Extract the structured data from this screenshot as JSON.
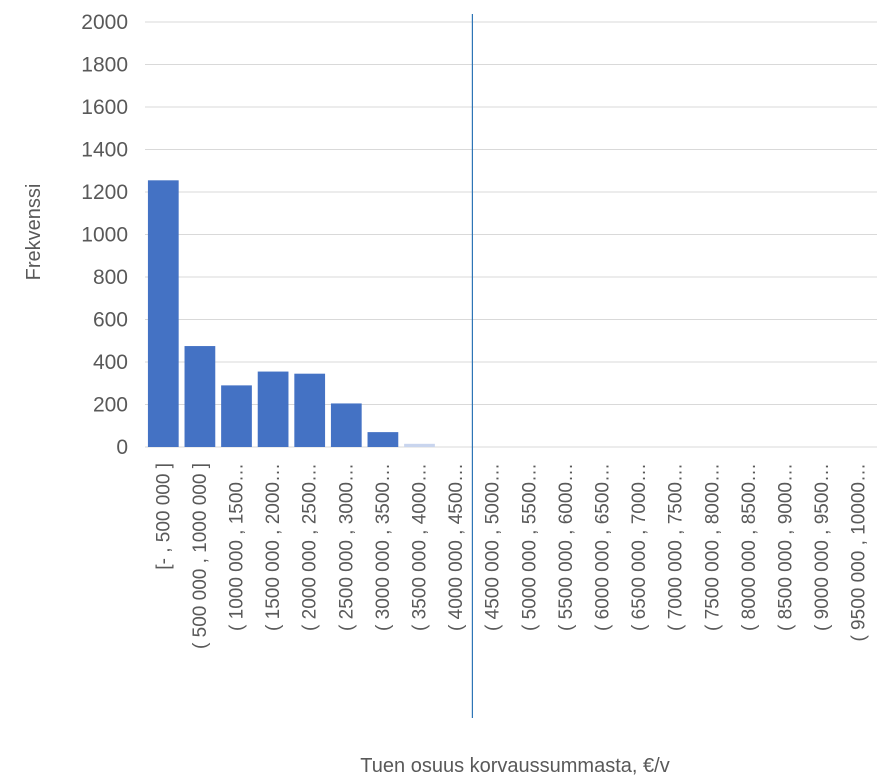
{
  "chart_data": {
    "type": "bar",
    "title": "",
    "xlabel": "Tuen osuus korvaussummasta, €/v",
    "ylabel": "Frekvenssi",
    "ylim": [
      0,
      2000
    ],
    "yticks": [
      "0",
      "200",
      "400",
      "600",
      "800",
      "1000",
      "1200",
      "1400",
      "1600",
      "1800",
      "2000"
    ],
    "grid": true,
    "legend": "none",
    "bar_color": "#4472C4",
    "marker_line_color": "#2E75B6",
    "marker_line_after_category": 9,
    "categories": [
      "[- , 500 000 ]",
      "( 500 000 , 1000 000 ]",
      "( 1000 000 , 1500…",
      "( 1500 000 , 2000…",
      "( 2000 000 , 2500…",
      "( 2500 000 , 3000…",
      "( 3000 000 , 3500…",
      "( 3500 000 , 4000…",
      "( 4000 000 , 4500…",
      "( 4500 000 , 5000…",
      "( 5000 000 , 5500…",
      "( 5500 000 , 6000…",
      "( 6000 000 , 6500…",
      "( 6500 000 , 7000…",
      "( 7000 000 , 7500…",
      "( 7500 000 , 8000…",
      "( 8000 000 , 8500…",
      "( 8500 000 , 9000…",
      "( 9000 000 , 9500…",
      "( 9500 000 , 10000…"
    ],
    "values": [
      1255,
      475,
      290,
      355,
      345,
      205,
      70,
      15,
      0,
      0,
      0,
      0,
      0,
      0,
      0,
      0,
      0,
      0,
      0,
      0
    ]
  }
}
